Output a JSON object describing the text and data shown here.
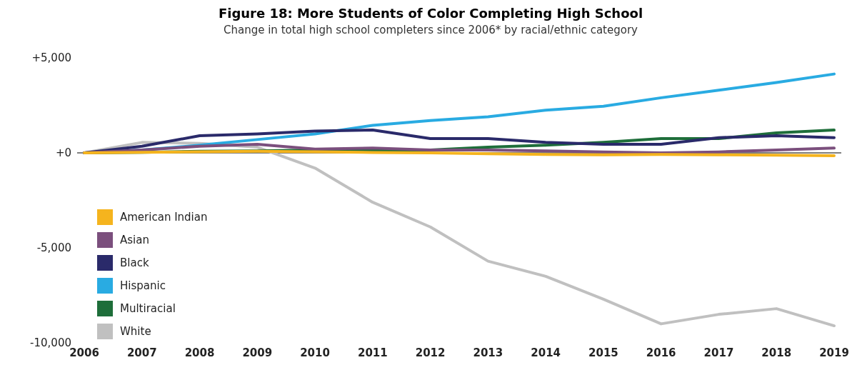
{
  "chart_data": {
    "type": "line",
    "title": "Figure 18: More Students of Color Completing High School",
    "subtitle": "Change in total high school completers since 2006* by racial/ethnic category",
    "categories": [
      "2006",
      "2007",
      "2008",
      "2009",
      "2010",
      "2011",
      "2012",
      "2013",
      "2014",
      "2015",
      "2016",
      "2017",
      "2018",
      "2019"
    ],
    "series": [
      {
        "name": "American Indian",
        "color": "#f5b41e",
        "values": [
          0,
          30,
          60,
          80,
          60,
          20,
          0,
          -50,
          -80,
          -100,
          -80,
          -100,
          -120,
          -150
        ]
      },
      {
        "name": "Asian",
        "color": "#7b4f7d",
        "values": [
          0,
          150,
          350,
          450,
          200,
          250,
          150,
          150,
          100,
          50,
          0,
          50,
          150,
          250
        ]
      },
      {
        "name": "Black",
        "color": "#2a2a6a",
        "values": [
          0,
          350,
          900,
          1000,
          1150,
          1200,
          750,
          750,
          550,
          450,
          450,
          800,
          900,
          800
        ]
      },
      {
        "name": "Hispanic",
        "color": "#29abe2",
        "values": [
          0,
          150,
          400,
          700,
          1000,
          1450,
          1700,
          1900,
          2250,
          2450,
          2900,
          3300,
          3700,
          4150
        ]
      },
      {
        "name": "Multiracial",
        "color": "#1e6e3a",
        "values": [
          0,
          30,
          80,
          100,
          150,
          150,
          150,
          300,
          400,
          550,
          750,
          750,
          1050,
          1200
        ]
      },
      {
        "name": "White",
        "color": "#c0c0c0",
        "values": [
          0,
          550,
          500,
          300,
          -800,
          -2600,
          -3900,
          -5700,
          -6500,
          -7700,
          -9000,
          -8500,
          -8200,
          -9100
        ]
      }
    ],
    "ylim": [
      -10000,
      5000
    ],
    "yticks": [
      {
        "value": 5000,
        "label": "+5,000"
      },
      {
        "value": 0,
        "label": "+0"
      },
      {
        "value": -5000,
        "label": "-5,000"
      },
      {
        "value": -10000,
        "label": "-10,000"
      }
    ],
    "ref_lines": [
      {
        "axis": "y",
        "value": 0,
        "color": "#000000"
      }
    ],
    "grid": false,
    "legend": "bottom left",
    "marker": "none",
    "line_style": "solid"
  }
}
